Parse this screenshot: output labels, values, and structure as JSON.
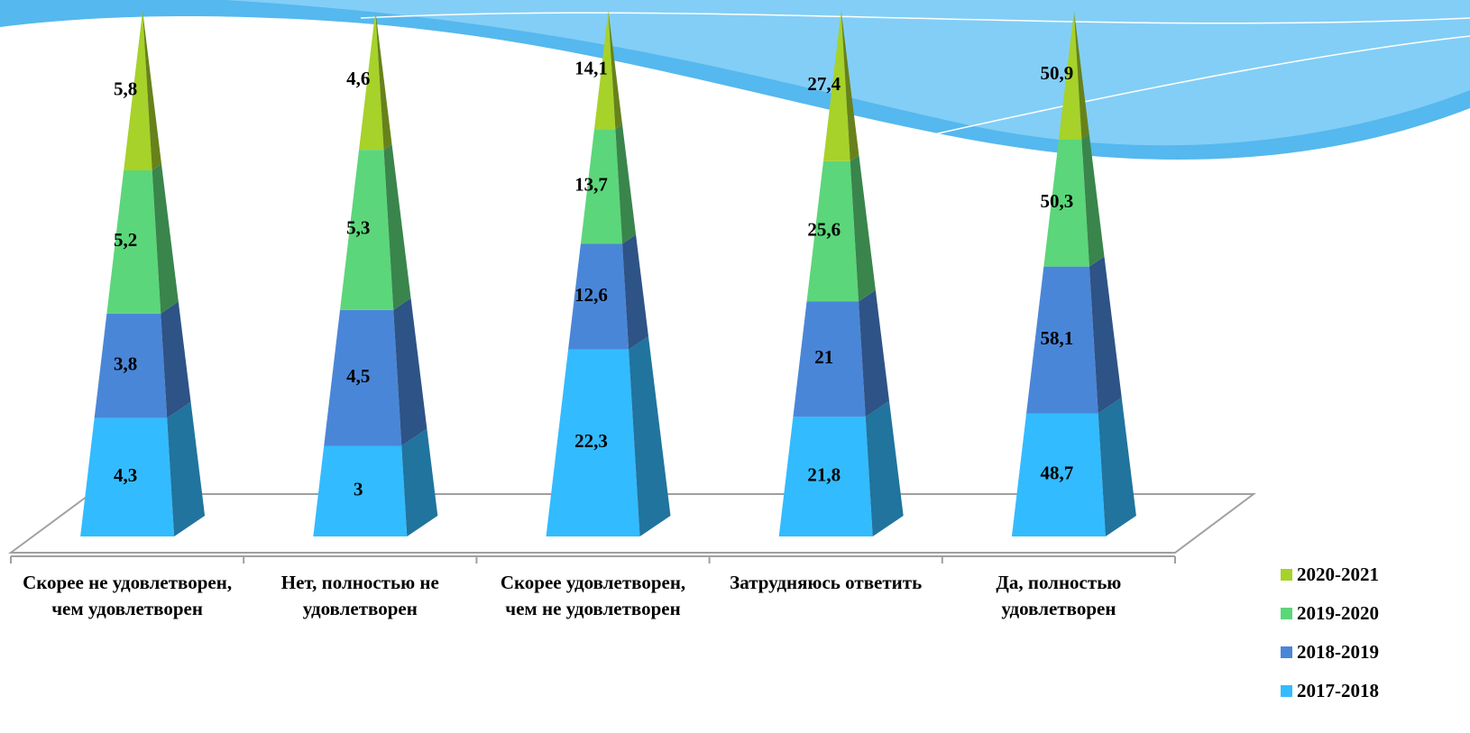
{
  "chart_data": {
    "type": "pyramid",
    "categories": [
      "Скорее не удовлетворен, чем удовлетворен",
      "Нет, полностью не удовлетворен",
      "Скорее удовлетворен, чем не удовлетворен",
      "Затрудняюсь ответить",
      "Да, полностью удовлетворен"
    ],
    "series": [
      {
        "name": "2017-2018",
        "color": "#33bbff",
        "values": [
          4.3,
          3,
          22.3,
          21.8,
          48.7
        ],
        "value_labels": [
          "4,3",
          "3",
          "22,3",
          "21,8",
          "48,7"
        ]
      },
      {
        "name": "2018-2019",
        "color": "#4a86d8",
        "values": [
          3.8,
          4.5,
          12.6,
          21,
          58.1
        ],
        "value_labels": [
          "3,8",
          "4,5",
          "12,6",
          "21",
          "58,1"
        ]
      },
      {
        "name": "2019-2020",
        "color": "#5cd67a",
        "values": [
          5.2,
          5.3,
          13.7,
          25.6,
          50.3
        ],
        "value_labels": [
          "5,2",
          "5,3",
          "13,7",
          "25,6",
          "50,3"
        ]
      },
      {
        "name": "2020-2021",
        "color": "#a6d22a",
        "values": [
          5.8,
          4.6,
          14.1,
          27.4,
          50.9
        ],
        "value_labels": [
          "5,8",
          "4,6",
          "14,1",
          "27,4",
          "50,9"
        ]
      }
    ],
    "stacked": "percent"
  }
}
